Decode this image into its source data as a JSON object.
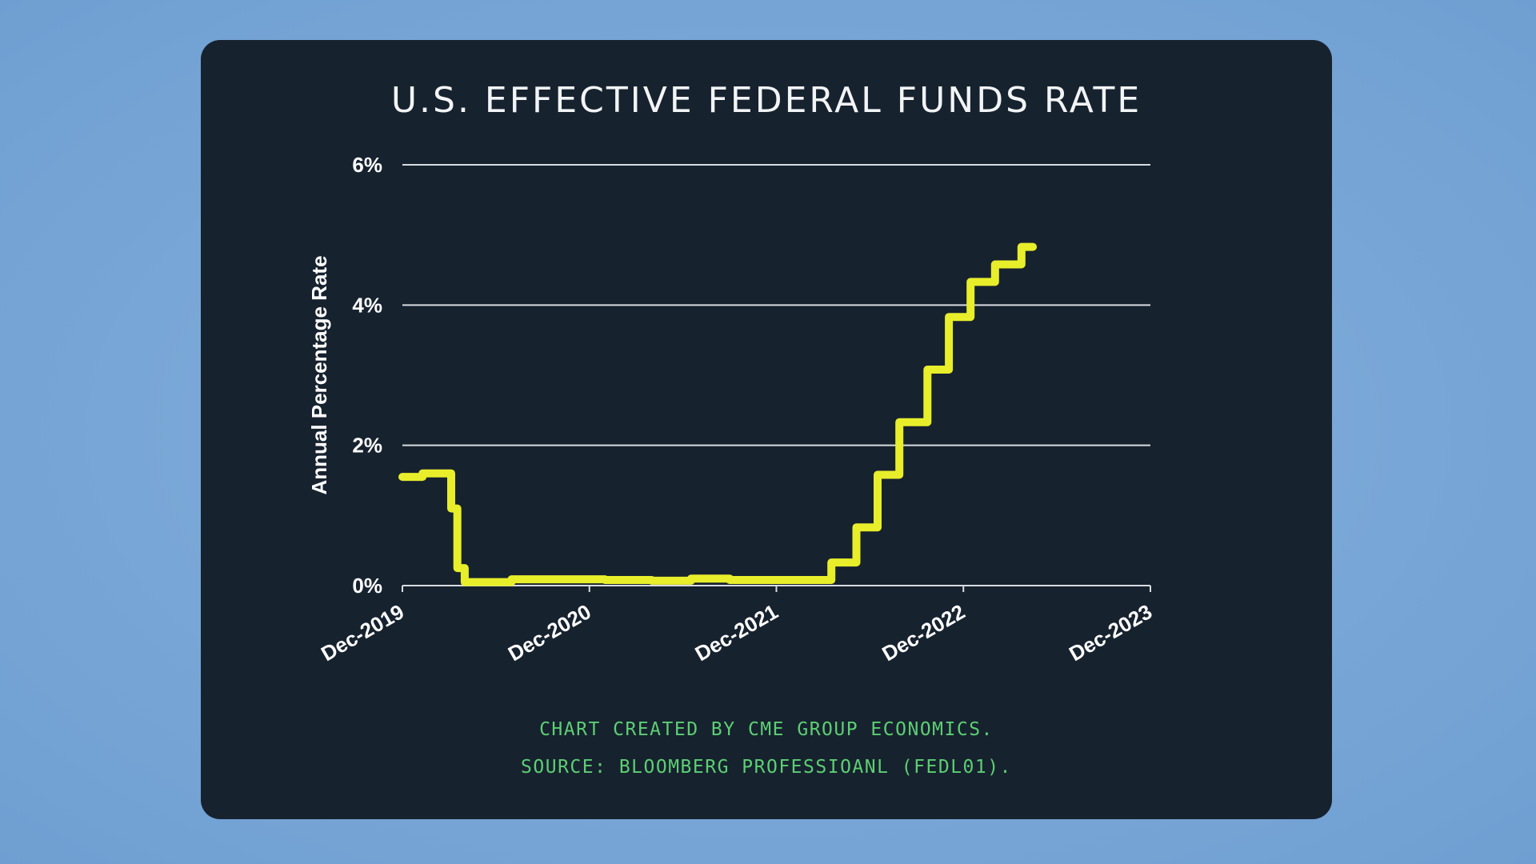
{
  "chart_data": {
    "type": "line",
    "title": "U.S. EFFECTIVE FEDERAL FUNDS RATE",
    "xlabel": "",
    "ylabel": "Annual Percentage Rate",
    "xlim": [
      "2019-12",
      "2023-12"
    ],
    "ylim": [
      0,
      6
    ],
    "x_ticks": [
      "Dec-2019",
      "Dec-2020",
      "Dec-2021",
      "Dec-2022",
      "Dec-2023"
    ],
    "y_ticks": [
      "0%",
      "2%",
      "4%",
      "6%"
    ],
    "y_tick_values": [
      0,
      2,
      4,
      6
    ],
    "grid": "horizontal",
    "line_color": "#e8ee2a",
    "step": true,
    "points": [
      [
        "2019-12-01",
        1.55
      ],
      [
        "2020-01-01",
        1.55
      ],
      [
        "2020-01-10",
        1.6
      ],
      [
        "2020-03-04",
        1.6
      ],
      [
        "2020-03-05",
        1.1
      ],
      [
        "2020-03-16",
        1.1
      ],
      [
        "2020-03-17",
        0.25
      ],
      [
        "2020-04-01",
        0.05
      ],
      [
        "2020-07-01",
        0.09
      ],
      [
        "2020-10-01",
        0.09
      ],
      [
        "2021-01-01",
        0.08
      ],
      [
        "2021-04-01",
        0.07
      ],
      [
        "2021-06-17",
        0.1
      ],
      [
        "2021-09-01",
        0.08
      ],
      [
        "2022-03-17",
        0.33
      ],
      [
        "2022-05-05",
        0.83
      ],
      [
        "2022-06-16",
        1.58
      ],
      [
        "2022-07-28",
        2.33
      ],
      [
        "2022-09-22",
        3.08
      ],
      [
        "2022-11-03",
        3.83
      ],
      [
        "2022-12-15",
        4.33
      ],
      [
        "2023-02-02",
        4.58
      ],
      [
        "2023-03-23",
        4.83
      ],
      [
        "2023-04-15",
        4.83
      ]
    ]
  },
  "footer": {
    "line1": "CHART CREATED BY CME GROUP ECONOMICS.",
    "line2": "SOURCE:  BLOOMBERG PROFESSIOANL (FEDL01)."
  }
}
